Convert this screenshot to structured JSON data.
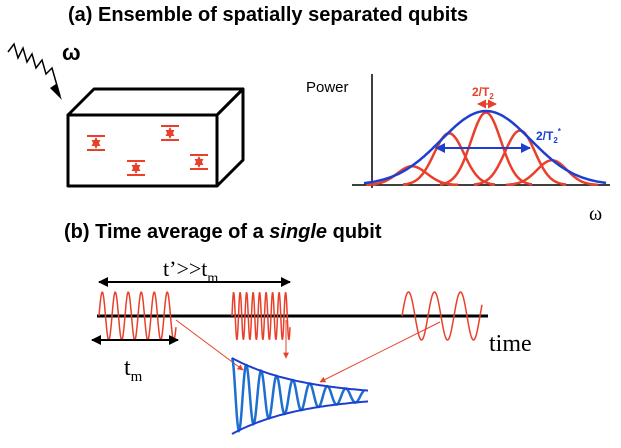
{
  "panel_a": {
    "title": "(a) Ensemble of spatially separated qubits",
    "omega_label": "ω",
    "spectrum": {
      "ylabel": "Power",
      "xlabel": "ω",
      "t2_label": "2/T",
      "t2_sub": "2",
      "t2star_label": "2/T",
      "t2star_sub": "2",
      "t2star_sup": "*"
    }
  },
  "panel_b": {
    "title_prefix": "(b) Time average of a ",
    "title_italic": "single",
    "title_suffix": " qubit",
    "tprime_label": "t’>>t",
    "tprime_sub": "m",
    "tm_label": "t",
    "tm_sub": "m",
    "time_label": "time"
  },
  "colors": {
    "red": "#e8402a",
    "blue": "#1f6fd1",
    "blue_env": "#1c3fd0",
    "black": "#000000"
  }
}
